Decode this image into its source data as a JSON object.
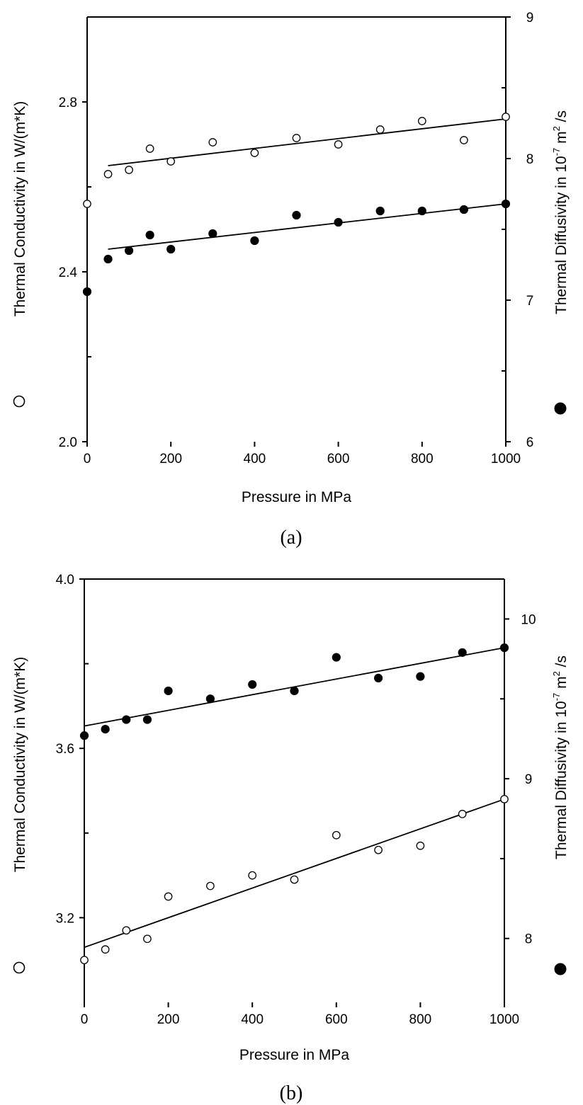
{
  "chart_data": [
    {
      "type": "scatter",
      "panel_label": "(a)",
      "xlabel": "Pressure in MPa",
      "ylabel_left": "Thermal Conductivity in W/(m*K)",
      "ylabel_right_prefix": "Thermal Diffusivity in 10",
      "ylabel_right_exp": "-7",
      "ylabel_right_unit": " m",
      "ylabel_right_exp2": "2",
      "ylabel_right_suffix": " /s",
      "left_marker": "○",
      "right_marker": "●",
      "xlim": [
        0,
        1000
      ],
      "ylim_left": [
        2.0,
        3.0
      ],
      "ylim_right": [
        6,
        9
      ],
      "x_ticks": [
        0,
        200,
        400,
        600,
        800,
        1000
      ],
      "x_tick_labels": [
        "0",
        "200",
        "400",
        "600",
        "800",
        "1000"
      ],
      "left_ticks": [
        2.0,
        2.4,
        2.8
      ],
      "left_tick_labels": [
        "2.0",
        "2.4",
        "2.8"
      ],
      "left_minor_ticks": [
        2.2,
        2.6
      ],
      "right_ticks": [
        6,
        7,
        8,
        9
      ],
      "right_tick_labels": [
        "6",
        "7",
        "8",
        "9"
      ],
      "right_minor_ticks": [
        6.5,
        7.5,
        8.5
      ],
      "series": [
        {
          "name": "Thermal Conductivity",
          "axis": "left",
          "marker": "open-circle",
          "x": [
            0,
            50,
            100,
            150,
            200,
            300,
            400,
            500,
            600,
            700,
            800,
            900,
            1000
          ],
          "values": [
            2.56,
            2.63,
            2.64,
            2.69,
            2.66,
            2.705,
            2.68,
            2.715,
            2.7,
            2.735,
            2.755,
            2.71,
            2.765
          ],
          "fit": {
            "x": [
              50,
              1000
            ],
            "y": [
              2.65,
              2.76
            ]
          }
        },
        {
          "name": "Thermal Diffusivity",
          "axis": "right",
          "marker": "filled-circle",
          "x": [
            0,
            50,
            100,
            150,
            200,
            300,
            400,
            500,
            600,
            700,
            800,
            900,
            1000
          ],
          "values": [
            7.06,
            7.29,
            7.35,
            7.46,
            7.36,
            7.47,
            7.42,
            7.6,
            7.55,
            7.63,
            7.63,
            7.64,
            7.68
          ],
          "fit": {
            "x": [
              50,
              1000
            ],
            "y": [
              7.36,
              7.68
            ]
          }
        }
      ]
    },
    {
      "type": "scatter",
      "panel_label": "(b)",
      "xlabel": "Pressure in MPa",
      "ylabel_left": "Thermal Conductivity in W/(m*K)",
      "ylabel_right_prefix": "Thermal Diffusivity in 10",
      "ylabel_right_exp": "-7",
      "ylabel_right_unit": " m",
      "ylabel_right_exp2": "2",
      "ylabel_right_suffix": " /s",
      "left_marker": "○",
      "right_marker": "●",
      "xlim": [
        0,
        1000
      ],
      "ylim_left": [
        3.0,
        4.0
      ],
      "ylim_right": [
        7.6,
        10.25
      ],
      "x_ticks": [
        0,
        200,
        400,
        600,
        800,
        1000
      ],
      "x_tick_labels": [
        "0",
        "200",
        "400",
        "600",
        "800",
        "1000"
      ],
      "left_ticks": [
        3.2,
        3.6,
        4.0
      ],
      "left_tick_labels": [
        "3.2",
        "3.6",
        "4.0"
      ],
      "left_minor_ticks": [
        3.4,
        3.8
      ],
      "right_ticks": [
        8,
        9,
        10
      ],
      "right_tick_labels": [
        "8",
        "9",
        "10"
      ],
      "right_minor_ticks": [
        8.5,
        9.5
      ],
      "series": [
        {
          "name": "Thermal Diffusivity",
          "axis": "right",
          "marker": "filled-circle",
          "x": [
            0,
            50,
            100,
            150,
            200,
            300,
            400,
            500,
            600,
            700,
            800,
            900,
            1000
          ],
          "values": [
            9.27,
            9.31,
            9.37,
            9.37,
            9.55,
            9.5,
            9.59,
            9.55,
            9.76,
            9.63,
            9.64,
            9.79,
            9.82
          ],
          "fit": {
            "x": [
              0,
              1000
            ],
            "y": [
              9.33,
              9.82
            ]
          }
        },
        {
          "name": "Thermal Conductivity",
          "axis": "left",
          "marker": "open-circle",
          "x": [
            0,
            50,
            100,
            150,
            200,
            300,
            400,
            500,
            600,
            700,
            800,
            900,
            1000
          ],
          "values": [
            3.1,
            3.125,
            3.17,
            3.15,
            3.25,
            3.275,
            3.3,
            3.29,
            3.395,
            3.36,
            3.37,
            3.445,
            3.48
          ],
          "fit": {
            "x": [
              0,
              1000
            ],
            "y": [
              3.13,
              3.48
            ]
          }
        }
      ]
    }
  ]
}
